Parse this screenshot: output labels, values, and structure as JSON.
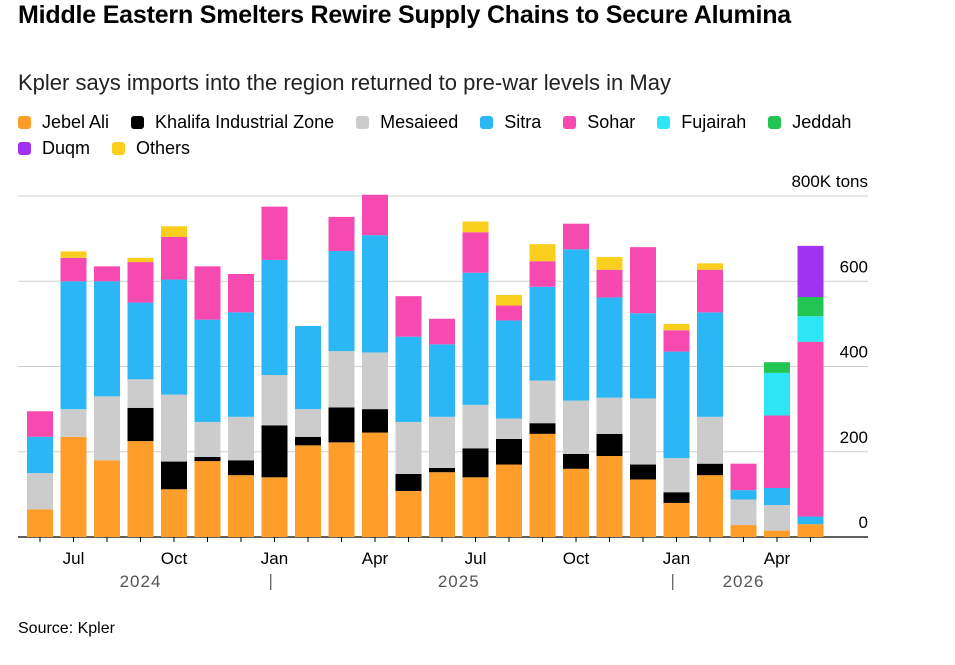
{
  "title": "Middle Eastern Smelters Rewire Supply Chains to Secure Alumina",
  "subtitle": "Kpler says imports into the region returned to pre-war levels in May",
  "source": "Source: Kpler",
  "chart_data": {
    "type": "bar",
    "stacked": true,
    "unit_label": "800K tons",
    "ylim": [
      0,
      800
    ],
    "y_ticks": [
      0,
      200,
      400,
      600,
      800
    ],
    "y_tick_labels": [
      "0",
      "200",
      "400",
      "600",
      "800K tons"
    ],
    "grid": true,
    "legend_position": "top-left",
    "categories": [
      "2024-06",
      "2024-07",
      "2024-08",
      "2024-09",
      "2024-10",
      "2024-11",
      "2024-12",
      "2025-01",
      "2025-02",
      "2025-03",
      "2025-04",
      "2025-05",
      "2025-06",
      "2025-07",
      "2025-08",
      "2025-09",
      "2025-10",
      "2025-11",
      "2025-12",
      "2026-01",
      "2026-02",
      "2026-03",
      "2026-04",
      "2026-05"
    ],
    "x_tick_labels": [
      {
        "category": "2024-07",
        "label": "Jul"
      },
      {
        "category": "2024-10",
        "label": "Oct"
      },
      {
        "category": "2025-01",
        "label": "Jan"
      },
      {
        "category": "2025-04",
        "label": "Apr"
      },
      {
        "category": "2025-07",
        "label": "Jul"
      },
      {
        "category": "2025-10",
        "label": "Oct"
      },
      {
        "category": "2026-01",
        "label": "Jan"
      },
      {
        "category": "2026-04",
        "label": "Apr"
      }
    ],
    "year_labels": [
      {
        "label": "2024",
        "from": "2024-06",
        "to": "2024-12"
      },
      {
        "label": "2025",
        "from": "2025-01",
        "to": "2025-12"
      },
      {
        "label": "2026",
        "from": "2026-01",
        "to": "2026-05"
      }
    ],
    "series": [
      {
        "name": "Jebel Ali",
        "color": "#FF9D2B",
        "values": [
          65,
          235,
          180,
          225,
          112,
          178,
          145,
          140,
          215,
          222,
          245,
          108,
          152,
          140,
          170,
          242,
          160,
          190,
          135,
          80,
          145,
          28,
          15,
          30
        ]
      },
      {
        "name": "Khalifa Industrial Zone",
        "color": "#000000",
        "values": [
          0,
          0,
          0,
          78,
          65,
          10,
          35,
          122,
          20,
          82,
          55,
          40,
          10,
          68,
          60,
          25,
          35,
          52,
          35,
          25,
          27,
          0,
          0,
          0
        ]
      },
      {
        "name": "Mesaieed",
        "color": "#CCCCCC",
        "values": [
          85,
          65,
          150,
          67,
          157,
          82,
          102,
          118,
          65,
          132,
          133,
          122,
          120,
          102,
          48,
          100,
          125,
          85,
          155,
          80,
          110,
          60,
          60,
          0
        ]
      },
      {
        "name": "Sitra",
        "color": "#2BB7F5",
        "values": [
          85,
          300,
          270,
          180,
          270,
          240,
          245,
          270,
          195,
          235,
          275,
          200,
          170,
          310,
          230,
          220,
          355,
          235,
          200,
          250,
          245,
          22,
          40,
          18
        ]
      },
      {
        "name": "Sohar",
        "color": "#F74AB1",
        "values": [
          60,
          55,
          35,
          95,
          100,
          125,
          90,
          125,
          0,
          80,
          95,
          95,
          60,
          95,
          35,
          60,
          60,
          65,
          155,
          50,
          100,
          62,
          170,
          410
        ]
      },
      {
        "name": "Fujairah",
        "color": "#2DE5F5",
        "values": [
          0,
          0,
          0,
          0,
          0,
          0,
          0,
          0,
          0,
          0,
          0,
          0,
          0,
          0,
          0,
          0,
          0,
          0,
          0,
          0,
          0,
          0,
          100,
          60
        ]
      },
      {
        "name": "Jeddah",
        "color": "#23C552",
        "values": [
          0,
          0,
          0,
          0,
          0,
          0,
          0,
          0,
          0,
          0,
          0,
          0,
          0,
          0,
          0,
          0,
          0,
          0,
          0,
          0,
          0,
          0,
          25,
          45
        ]
      },
      {
        "name": "Duqm",
        "color": "#A133F3",
        "values": [
          0,
          0,
          0,
          0,
          0,
          0,
          0,
          0,
          0,
          0,
          0,
          0,
          0,
          0,
          0,
          0,
          0,
          0,
          0,
          0,
          0,
          0,
          0,
          120
        ]
      },
      {
        "name": "Others",
        "color": "#F9CE1D",
        "values": [
          0,
          15,
          0,
          10,
          25,
          0,
          0,
          0,
          0,
          0,
          0,
          0,
          0,
          25,
          25,
          40,
          0,
          30,
          0,
          15,
          15,
          0,
          0,
          0
        ]
      }
    ]
  }
}
